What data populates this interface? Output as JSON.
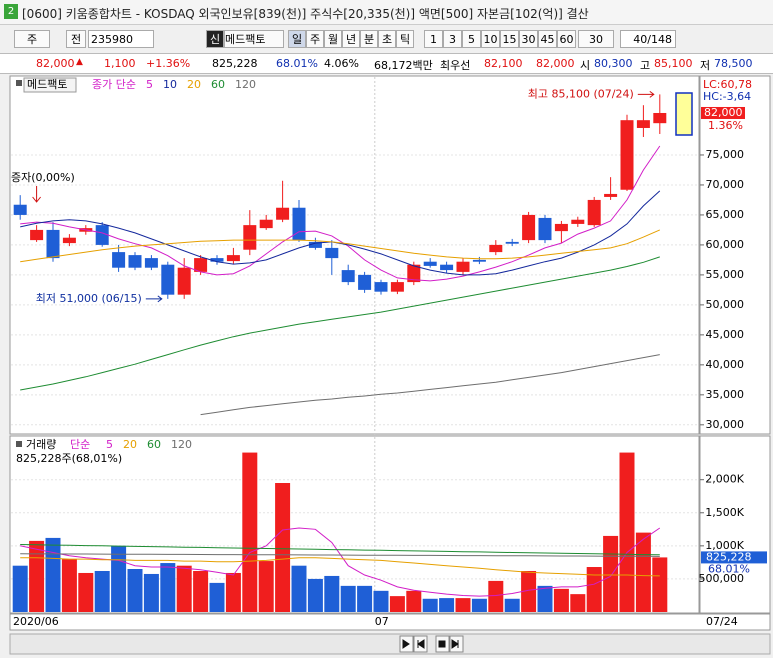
{
  "window": {
    "badge": "2",
    "title": "[0600] 키움종합차트 - KOSDAQ 외국인보유[839(천)] 주식수[20,335(천)] 액면[500] 자본금[102(억)] 결산"
  },
  "toolbar": {
    "type": "주",
    "mode": "전",
    "code": "235980",
    "badge": "신",
    "name": "메드팩토",
    "periods": [
      "일",
      "주",
      "월",
      "년",
      "분",
      "초",
      "틱"
    ],
    "intervals": [
      "1",
      "3",
      "5",
      "10",
      "15",
      "30",
      "45",
      "60"
    ],
    "combo": "30",
    "count": "40/148"
  },
  "quote": {
    "price": "82,000",
    "change": "1,100",
    "rate": "+1.36%",
    "volume": "825,228",
    "volume_ratio": "68.01%",
    "turnover": "4.06%",
    "amount": "68,172백만",
    "priority_label": "최우선",
    "bid": "82,100",
    "ask": "82,000",
    "open_label": "시",
    "open": "80,300",
    "high_label": "고",
    "high": "85,100",
    "low_label": "저",
    "low": "78,500"
  },
  "chart_data": [
    {
      "type": "candlestick",
      "title": "메드팩토",
      "series_label": "종가 단순",
      "categories": [
        "2020/06",
        null,
        null,
        null,
        null,
        null,
        null,
        null,
        null,
        null,
        null,
        null,
        null,
        null,
        null,
        null,
        null,
        null,
        null,
        null,
        null,
        null,
        "07",
        null,
        null,
        null,
        null,
        null,
        null,
        null,
        null,
        null,
        null,
        null,
        null,
        null,
        null,
        null,
        null,
        null
      ],
      "x_cursor_label": "07/24",
      "open": [
        66700,
        60800,
        62500,
        60300,
        62200,
        63300,
        58800,
        58300,
        57800,
        56700,
        51700,
        55500,
        57800,
        57300,
        59200,
        62800,
        64200,
        66200,
        60500,
        59500,
        55800,
        55000,
        53800,
        52200,
        53800,
        57200,
        56700,
        55500,
        57500,
        58800,
        60500,
        60800,
        64500,
        62300,
        63500,
        63300,
        68000,
        69200,
        79500,
        80300
      ],
      "high": [
        68300,
        63300,
        63800,
        61800,
        63300,
        63800,
        60000,
        58800,
        58300,
        57200,
        57800,
        58300,
        58300,
        59500,
        65800,
        65000,
        70700,
        67500,
        61200,
        60800,
        56700,
        55500,
        54200,
        54200,
        57200,
        57800,
        57200,
        57800,
        58000,
        60800,
        61000,
        65500,
        65000,
        64000,
        64700,
        68000,
        71300,
        81700,
        83300,
        85100
      ],
      "low": [
        64200,
        60500,
        57200,
        59800,
        61700,
        59700,
        55500,
        55800,
        55800,
        51000,
        51000,
        55000,
        56700,
        56800,
        58300,
        62500,
        63800,
        60500,
        59200,
        55000,
        53300,
        52000,
        51700,
        51800,
        53300,
        56200,
        55300,
        55000,
        56800,
        58300,
        59800,
        60300,
        60300,
        60300,
        63000,
        63000,
        67500,
        69000,
        78000,
        78500
      ],
      "close": [
        65000,
        62500,
        57800,
        61200,
        62800,
        60000,
        56200,
        56200,
        56200,
        51700,
        56200,
        57800,
        57200,
        58300,
        63300,
        64200,
        66200,
        60800,
        59500,
        57800,
        53800,
        52500,
        52200,
        53800,
        56700,
        56500,
        55800,
        57200,
        57200,
        60000,
        60200,
        65000,
        60800,
        63500,
        64200,
        67500,
        68500,
        80800,
        80800,
        82000
      ],
      "up_color": "#f01e1e",
      "down_color": "#1f5fd6",
      "ma": [
        {
          "name": "5",
          "color": "#d21ec8",
          "values": [
            63500,
            63800,
            63600,
            63000,
            62500,
            62000,
            61000,
            60200,
            59500,
            58200,
            56500,
            55500,
            55000,
            55200,
            56500,
            58500,
            60500,
            62200,
            62300,
            61500,
            59800,
            57500,
            55800,
            54500,
            54200,
            54000,
            54300,
            54800,
            55500,
            56300,
            57200,
            58300,
            59500,
            60300,
            61800,
            62800,
            64000,
            67500,
            72500,
            76500
          ]
        },
        {
          "name": "10",
          "color": "#14289c",
          "values": [
            63000,
            63600,
            64000,
            64200,
            64000,
            63500,
            62800,
            62000,
            61000,
            60000,
            59000,
            58000,
            57200,
            56800,
            57000,
            57500,
            58500,
            59500,
            60300,
            60500,
            60000,
            59300,
            58500,
            57500,
            56500,
            55800,
            55300,
            55000,
            55000,
            55200,
            55800,
            56500,
            57200,
            57800,
            58800,
            60000,
            61500,
            63500,
            66500,
            69000
          ]
        },
        {
          "name": "20",
          "color": "#e6a000",
          "values": [
            57200,
            57600,
            58000,
            58400,
            58800,
            59200,
            59500,
            59800,
            60000,
            60200,
            60400,
            60600,
            60700,
            60800,
            60800,
            60800,
            60800,
            60800,
            60700,
            60500,
            60200,
            59800,
            59400,
            59000,
            58600,
            58300,
            58000,
            57800,
            57700,
            57700,
            57800,
            58000,
            58300,
            58600,
            58900,
            59200,
            59500,
            60200,
            61300,
            62500
          ]
        },
        {
          "name": "60",
          "color": "#1e8c32",
          "values": [
            35800,
            36300,
            36800,
            37400,
            38000,
            38700,
            39400,
            40100,
            40900,
            41700,
            42500,
            43300,
            44000,
            44700,
            45300,
            45800,
            46300,
            46800,
            47200,
            47600,
            48000,
            48400,
            48800,
            49300,
            49800,
            50300,
            50800,
            51300,
            51800,
            52300,
            52800,
            53300,
            53800,
            54300,
            54800,
            55300,
            55800,
            56400,
            57100,
            58000
          ]
        },
        {
          "name": "120",
          "color": "#6e6e6e",
          "values": [
            null,
            null,
            null,
            null,
            null,
            null,
            null,
            null,
            null,
            null,
            null,
            31700,
            32100,
            32500,
            32900,
            33200,
            33500,
            33800,
            34100,
            34300,
            34600,
            34800,
            35100,
            35300,
            35600,
            35900,
            36200,
            36500,
            36800,
            37100,
            37500,
            37900,
            38300,
            38700,
            39200,
            39700,
            40200,
            40700,
            41200,
            41700
          ]
        }
      ],
      "ylim": [
        28800,
        85000
      ],
      "yticks": [
        {
          "value": 30000,
          "label": "30,000"
        },
        {
          "value": 35000,
          "label": "35,000"
        },
        {
          "value": 40000,
          "label": "40,000"
        },
        {
          "value": 45000,
          "label": "45,000"
        },
        {
          "value": 50000,
          "label": "50,000"
        },
        {
          "value": 55000,
          "label": "55,000"
        },
        {
          "value": 60000,
          "label": "60,000"
        },
        {
          "value": 65000,
          "label": "65,000"
        },
        {
          "value": 70000,
          "label": "70,000"
        },
        {
          "value": 75000,
          "label": "75,000"
        }
      ],
      "grid": true,
      "high_label": "최고 85,100 (07/24)",
      "low_label": "최저 51,000 (06/15)",
      "event_label": "증자(0,00%)",
      "lc": "LC:60,78",
      "hc": "HC:-3,64",
      "last_price": {
        "value": 82000,
        "label": "82,000"
      },
      "last_rate": "1.36%"
    },
    {
      "type": "bar",
      "title": "거래량",
      "series_label": "단순",
      "summary": "825,228주(68,01%)",
      "values": [
        700000,
        1075000,
        1120000,
        800000,
        590000,
        620000,
        1000000,
        650000,
        575000,
        740000,
        700000,
        620000,
        440000,
        590000,
        2410000,
        770000,
        1950000,
        700000,
        500000,
        545000,
        395000,
        395000,
        320000,
        240000,
        320000,
        200000,
        210000,
        210000,
        200000,
        470000,
        200000,
        620000,
        395000,
        350000,
        270000,
        680000,
        1150000,
        2410000,
        1200000,
        825228
      ],
      "up_color": "#f01e1e",
      "down_color": "#1f5fd6",
      "ma": [
        {
          "name": "5",
          "color": "#d21ec8",
          "values": [
            1000000,
            950000,
            900000,
            850000,
            820000,
            800000,
            780000,
            700000,
            680000,
            680000,
            660000,
            640000,
            600000,
            560000,
            900000,
            1000000,
            1240000,
            1270000,
            1250000,
            1050000,
            700000,
            560000,
            480000,
            380000,
            330000,
            300000,
            270000,
            250000,
            240000,
            250000,
            280000,
            330000,
            360000,
            380000,
            380000,
            420000,
            540000,
            900000,
            1100000,
            1270000
          ]
        },
        {
          "name": "20",
          "color": "#e6a000",
          "values": [
            820000,
            820000,
            810000,
            800000,
            800000,
            790000,
            790000,
            780000,
            780000,
            780000,
            770000,
            770000,
            760000,
            760000,
            770000,
            780000,
            800000,
            820000,
            820000,
            810000,
            800000,
            790000,
            780000,
            760000,
            740000,
            720000,
            700000,
            680000,
            660000,
            640000,
            620000,
            600000,
            590000,
            580000,
            570000,
            560000,
            560000,
            560000,
            550000,
            545000
          ]
        },
        {
          "name": "60",
          "color": "#1e8c32",
          "values": [
            1020000,
            1016000,
            1012000,
            1008000,
            1004000,
            1000000,
            996000,
            992000,
            988000,
            984000,
            980000,
            976000,
            972000,
            968000,
            964000,
            960000,
            956000,
            952000,
            948000,
            944000,
            940000,
            936000,
            932000,
            928000,
            924000,
            920000,
            916000,
            912000,
            908000,
            904000,
            900000,
            896000,
            892000,
            888000,
            884000,
            880000,
            876000,
            872000,
            868000,
            864000
          ]
        },
        {
          "name": "120",
          "color": "#6e6e6e",
          "values": [
            880000,
            879000,
            878000,
            877000,
            876000,
            875000,
            874000,
            873000,
            872000,
            871000,
            870000,
            869000,
            868000,
            867000,
            866000,
            865000,
            864000,
            863000,
            862000,
            861000,
            860000,
            859000,
            858000,
            857000,
            856000,
            855000,
            854000,
            853000,
            852000,
            851000,
            850000,
            849000,
            848000,
            847000,
            846000,
            845000,
            844000,
            843000,
            842000,
            841000
          ]
        }
      ],
      "ylim": [
        0,
        2600000
      ],
      "yticks": [
        {
          "value": 500000,
          "label": "500,000"
        },
        {
          "value": 1000000,
          "label": "1,000K"
        },
        {
          "value": 1500000,
          "label": "1,500K"
        },
        {
          "value": 2000000,
          "label": "2,000K"
        }
      ],
      "last_volume": {
        "value": 825228,
        "label": "825,228"
      },
      "last_rate": "68.01%"
    }
  ]
}
